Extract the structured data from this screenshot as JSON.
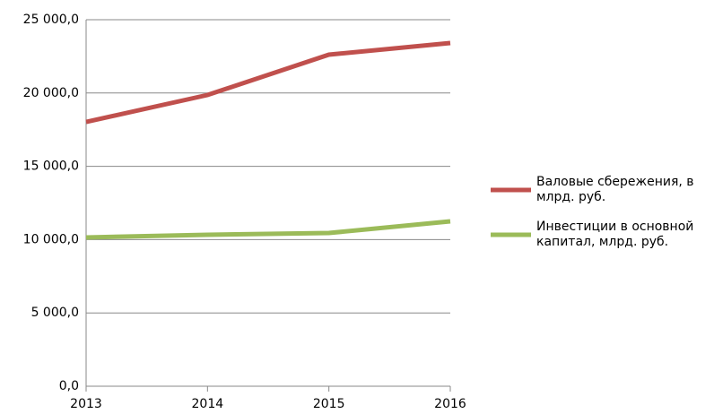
{
  "chart_data": {
    "type": "line",
    "x": [
      2013,
      2014,
      2015,
      2016
    ],
    "xlim": [
      2013,
      2016
    ],
    "xticks": [
      2013,
      2014,
      2015,
      2016
    ],
    "ylim": [
      0,
      25000
    ],
    "yticks": [
      {
        "value": 0,
        "label": "0,0"
      },
      {
        "value": 5000,
        "label": "5 000,0"
      },
      {
        "value": 10000,
        "label": "10 000,0"
      },
      {
        "value": 15000,
        "label": "15 000,0"
      },
      {
        "value": 20000,
        "label": "20 000,0"
      },
      {
        "value": 25000,
        "label": "25 000,0"
      }
    ],
    "grid": true,
    "legend": "right",
    "series": [
      {
        "name": "Валовые сбережения, в млрд. руб.",
        "color": "#c0504d",
        "values": [
          18030,
          19865,
          22616,
          23410
        ]
      },
      {
        "name": "Инвестиции в основной капитал, млрд. руб.",
        "color": "#9bbb59",
        "values": [
          10147,
          10330,
          10450,
          11247
        ]
      }
    ]
  }
}
